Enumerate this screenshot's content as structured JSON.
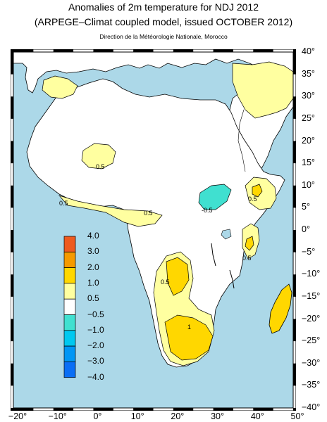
{
  "header": {
    "title": "Anomalies of 2m temperature for NDJ 2012",
    "subtitle": "(ARPEGE–Climat coupled model, issued OCTOBER 2012)",
    "credit": "Direction de la Météorologie Nationale, Morocco"
  },
  "map": {
    "region": "Africa",
    "lon_range": [
      -20,
      50
    ],
    "lat_range": [
      -40,
      40
    ],
    "lat_labels": [
      "40°",
      "35°",
      "30°",
      "25°",
      "20°",
      "15°",
      "10°",
      "5°",
      "0°",
      "−5°",
      "−10°",
      "−15°",
      "−20°",
      "−25°",
      "−30°",
      "−35°",
      "−40°"
    ],
    "lon_labels": [
      "−20°",
      "−10°",
      "0°",
      "10°",
      "20°",
      "30°",
      "40°",
      "50°"
    ],
    "contour_labels": [
      "0.5",
      "0.5",
      "-0.5",
      "0.5",
      "0.5",
      "0.5",
      "0.5",
      "1"
    ],
    "colors": {
      "ocean": "#acd8e8",
      "land": "#ffffff",
      "c_0_5_1": "#ffffa0",
      "c_1_2": "#ffd700",
      "c_m1_m05": "#40e0d0"
    }
  },
  "colorbar": {
    "labels": [
      "4.0",
      "3.0",
      "2.0",
      "1.0",
      "0.5",
      "−0.5",
      "−1.0",
      "−2.0",
      "−3.0",
      "−4.0"
    ],
    "colors": [
      "#ee5a1e",
      "#f59a00",
      "#ffd700",
      "#ffffa0",
      "#ffffff",
      "#40e0d0",
      "#00c8f0",
      "#0096f5",
      "#0a6ef5"
    ]
  }
}
